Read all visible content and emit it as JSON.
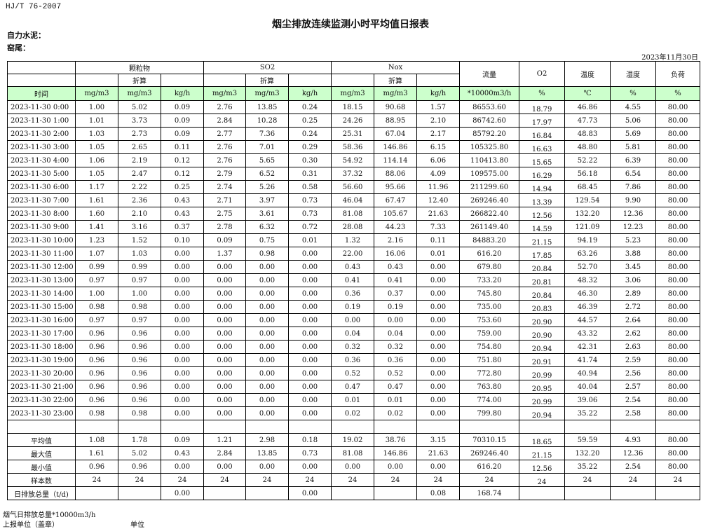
{
  "standard": "HJ/T  76-2007",
  "title": "烟尘排放连续监测小时平均值日报表",
  "company": "自力水泥：",
  "kiln": "窑尾：",
  "date": "2023年11月30日",
  "header": {
    "groups": [
      "颗粒物",
      "SO2",
      "Nox"
    ],
    "converted": "折算",
    "flow": "流量",
    "o2": "O2",
    "temp": "温度",
    "humidity": "湿度",
    "load": "负荷",
    "units": [
      "时间",
      "mg/m3",
      "mg/m3",
      "kg/h",
      "mg/m3",
      "mg/m3",
      "kg/h",
      "mg/m3",
      "mg/m3",
      "kg/h",
      "*10000m3/h",
      "%",
      "℃",
      "%",
      "%"
    ]
  },
  "rows": [
    [
      "2023-11-30 0:00",
      "1.00",
      "5.02",
      "0.09",
      "2.76",
      "13.85",
      "0.24",
      "18.15",
      "90.68",
      "1.57",
      "86553.60",
      "18.79",
      "46.86",
      "4.55",
      "80.00"
    ],
    [
      "2023-11-30 1:00",
      "1.01",
      "3.73",
      "0.09",
      "2.84",
      "10.28",
      "0.25",
      "24.26",
      "88.95",
      "2.10",
      "86742.60",
      "17.97",
      "47.73",
      "5.06",
      "80.00"
    ],
    [
      "2023-11-30 2:00",
      "1.03",
      "2.73",
      "0.09",
      "2.77",
      "7.36",
      "0.24",
      "25.31",
      "67.04",
      "2.17",
      "85792.20",
      "16.84",
      "48.83",
      "5.69",
      "80.00"
    ],
    [
      "2023-11-30 3:00",
      "1.05",
      "2.65",
      "0.11",
      "2.76",
      "7.01",
      "0.29",
      "58.36",
      "146.86",
      "6.15",
      "105325.80",
      "16.63",
      "48.80",
      "5.81",
      "80.00"
    ],
    [
      "2023-11-30 4:00",
      "1.06",
      "2.19",
      "0.12",
      "2.76",
      "5.65",
      "0.30",
      "54.92",
      "114.14",
      "6.06",
      "110413.80",
      "15.65",
      "52.22",
      "6.39",
      "80.00"
    ],
    [
      "2023-11-30 5:00",
      "1.05",
      "2.47",
      "0.12",
      "2.79",
      "6.52",
      "0.31",
      "37.32",
      "88.06",
      "4.09",
      "109575.00",
      "16.29",
      "56.18",
      "6.54",
      "80.00"
    ],
    [
      "2023-11-30 6:00",
      "1.17",
      "2.22",
      "0.25",
      "2.74",
      "5.26",
      "0.58",
      "56.60",
      "95.66",
      "11.96",
      "211299.60",
      "14.94",
      "68.45",
      "7.86",
      "80.00"
    ],
    [
      "2023-11-30 7:00",
      "1.61",
      "2.36",
      "0.43",
      "2.71",
      "3.97",
      "0.73",
      "46.04",
      "67.47",
      "12.40",
      "269246.40",
      "13.39",
      "129.54",
      "9.90",
      "80.00"
    ],
    [
      "2023-11-30 8:00",
      "1.60",
      "2.10",
      "0.43",
      "2.75",
      "3.61",
      "0.73",
      "81.08",
      "105.67",
      "21.63",
      "266822.40",
      "12.56",
      "132.20",
      "12.36",
      "80.00"
    ],
    [
      "2023-11-30 9:00",
      "1.41",
      "3.16",
      "0.37",
      "2.78",
      "6.32",
      "0.72",
      "28.08",
      "44.23",
      "7.33",
      "261149.40",
      "14.59",
      "121.09",
      "12.23",
      "80.00"
    ],
    [
      "2023-11-30 10:00",
      "1.23",
      "1.52",
      "0.10",
      "0.09",
      "0.75",
      "0.01",
      "1.32",
      "2.16",
      "0.11",
      "84883.20",
      "21.15",
      "94.19",
      "5.23",
      "80.00"
    ],
    [
      "2023-11-30 11:00",
      "1.07",
      "1.03",
      "0.00",
      "1.37",
      "0.98",
      "0.00",
      "22.00",
      "16.06",
      "0.01",
      "616.20",
      "17.85",
      "63.26",
      "3.88",
      "80.00"
    ],
    [
      "2023-11-30 12:00",
      "0.99",
      "0.99",
      "0.00",
      "0.00",
      "0.00",
      "0.00",
      "0.43",
      "0.43",
      "0.00",
      "679.80",
      "20.84",
      "52.70",
      "3.45",
      "80.00"
    ],
    [
      "2023-11-30 13:00",
      "0.97",
      "0.97",
      "0.00",
      "0.00",
      "0.00",
      "0.00",
      "0.41",
      "0.41",
      "0.00",
      "733.20",
      "20.81",
      "48.32",
      "3.06",
      "80.00"
    ],
    [
      "2023-11-30 14:00",
      "1.00",
      "1.00",
      "0.00",
      "0.00",
      "0.00",
      "0.00",
      "0.36",
      "0.37",
      "0.00",
      "745.80",
      "20.84",
      "46.30",
      "2.89",
      "80.00"
    ],
    [
      "2023-11-30 15:00",
      "0.98",
      "0.98",
      "0.00",
      "0.00",
      "0.00",
      "0.00",
      "0.19",
      "0.19",
      "0.00",
      "735.00",
      "20.83",
      "46.39",
      "2.72",
      "80.00"
    ],
    [
      "2023-11-30 16:00",
      "0.97",
      "0.97",
      "0.00",
      "0.00",
      "0.00",
      "0.00",
      "0.00",
      "0.00",
      "0.00",
      "753.60",
      "20.90",
      "44.57",
      "2.64",
      "80.00"
    ],
    [
      "2023-11-30 17:00",
      "0.96",
      "0.96",
      "0.00",
      "0.00",
      "0.00",
      "0.00",
      "0.04",
      "0.04",
      "0.00",
      "759.00",
      "20.90",
      "43.32",
      "2.62",
      "80.00"
    ],
    [
      "2023-11-30 18:00",
      "0.96",
      "0.96",
      "0.00",
      "0.00",
      "0.00",
      "0.00",
      "0.32",
      "0.32",
      "0.00",
      "754.80",
      "20.94",
      "42.31",
      "2.63",
      "80.00"
    ],
    [
      "2023-11-30 19:00",
      "0.96",
      "0.96",
      "0.00",
      "0.00",
      "0.00",
      "0.00",
      "0.36",
      "0.36",
      "0.00",
      "751.80",
      "20.91",
      "41.74",
      "2.59",
      "80.00"
    ],
    [
      "2023-11-30 20:00",
      "0.96",
      "0.96",
      "0.00",
      "0.00",
      "0.00",
      "0.00",
      "0.52",
      "0.52",
      "0.00",
      "772.80",
      "20.99",
      "40.94",
      "2.56",
      "80.00"
    ],
    [
      "2023-11-30 21:00",
      "0.96",
      "0.96",
      "0.00",
      "0.00",
      "0.00",
      "0.00",
      "0.47",
      "0.47",
      "0.00",
      "763.80",
      "20.95",
      "40.04",
      "2.57",
      "80.00"
    ],
    [
      "2023-11-30 22:00",
      "0.96",
      "0.96",
      "0.00",
      "0.00",
      "0.00",
      "0.00",
      "0.01",
      "0.01",
      "0.00",
      "774.00",
      "20.99",
      "39.06",
      "2.54",
      "80.00"
    ],
    [
      "2023-11-30 23:00",
      "0.98",
      "0.98",
      "0.00",
      "0.00",
      "0.00",
      "0.00",
      "0.02",
      "0.02",
      "0.00",
      "799.80",
      "20.94",
      "35.22",
      "2.58",
      "80.00"
    ]
  ],
  "summary": [
    [
      "平均值",
      "1.08",
      "1.78",
      "0.09",
      "1.21",
      "2.98",
      "0.18",
      "19.02",
      "38.76",
      "3.15",
      "70310.15",
      "18.65",
      "59.59",
      "4.93",
      "80.00"
    ],
    [
      "最大值",
      "1.61",
      "5.02",
      "0.43",
      "2.84",
      "13.85",
      "0.73",
      "81.08",
      "146.86",
      "21.63",
      "269246.40",
      "21.15",
      "132.20",
      "12.36",
      "80.00"
    ],
    [
      "最小值",
      "0.96",
      "0.96",
      "0.00",
      "0.00",
      "0.00",
      "0.00",
      "0.00",
      "0.00",
      "0.00",
      "616.20",
      "12.56",
      "35.22",
      "2.54",
      "80.00"
    ],
    [
      "样本数",
      "24",
      "24",
      "24",
      "24",
      "24",
      "24",
      "24",
      "24",
      "24",
      "24",
      "24",
      "24",
      "24",
      "24"
    ],
    [
      "日排放总量（t/d)",
      "",
      "",
      "0.00",
      "",
      "",
      "0.00",
      "",
      "",
      "0.08",
      "168.74",
      "",
      "",
      "",
      ""
    ]
  ],
  "footer": {
    "flue_gas_total": "烟气日排放总量*10000m3/h",
    "reporting_unit": "上报单位（盖章）",
    "unit": "单位"
  },
  "colors": {
    "header_green": "#ccffcc",
    "border": "#000000"
  }
}
